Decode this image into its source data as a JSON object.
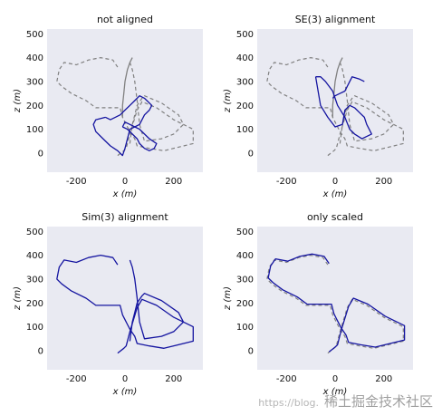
{
  "colors": {
    "panel_bg": "#e9eaf2",
    "estimate": "#1414a0",
    "groundtruth": "#808080"
  },
  "chart_data": [
    {
      "type": "line",
      "title": "not aligned",
      "xlabel": "x (m)",
      "ylabel": "z (m)",
      "xlim": [
        -320,
        320
      ],
      "ylim": [
        -80,
        520
      ],
      "xticks": [
        -200,
        0,
        200
      ],
      "yticks": [
        0,
        100,
        200,
        300,
        400,
        500
      ],
      "grid": false,
      "series": [
        {
          "style": "dashed",
          "color": "#808080",
          "x": [
            -30,
            -5,
            5,
            10,
            20,
            50,
            70,
            130,
            200,
            280,
            280,
            160,
            100,
            50,
            40,
            20,
            10,
            0,
            -10,
            -20,
            -120,
            -160,
            -220,
            -260,
            -280,
            -270,
            -250,
            -200,
            -150,
            -100,
            -50,
            -30
          ],
          "y": [
            -10,
            10,
            20,
            40,
            80,
            180,
            215,
            190,
            140,
            100,
            40,
            10,
            20,
            30,
            60,
            90,
            110,
            130,
            150,
            190,
            190,
            220,
            250,
            280,
            300,
            350,
            380,
            370,
            390,
            400,
            390,
            360
          ]
        },
        {
          "style": "dashed",
          "color": "#808080",
          "x": [
            20,
            25,
            30,
            40,
            50,
            70,
            80,
            150,
            220,
            240,
            200,
            150,
            80,
            60,
            50,
            40,
            30,
            20
          ],
          "y": [
            40,
            80,
            120,
            160,
            200,
            230,
            240,
            210,
            160,
            120,
            80,
            60,
            50,
            120,
            220,
            300,
            350,
            380
          ]
        },
        {
          "style": "solid",
          "color": "#808080",
          "x": [
            -10,
            -10,
            -5,
            0,
            10,
            20,
            30
          ],
          "y": [
            150,
            200,
            250,
            300,
            350,
            380,
            400
          ]
        },
        {
          "style": "solid",
          "color": "#1414a0",
          "x": [
            -80,
            -120,
            -130,
            -120,
            -90,
            -60,
            -30,
            -10,
            0,
            10,
            20,
            40,
            60,
            80,
            100,
            110,
            80,
            60,
            40,
            20,
            0,
            -20,
            -40,
            -60,
            -80
          ],
          "y": [
            150,
            140,
            120,
            90,
            60,
            30,
            10,
            -10,
            20,
            60,
            100,
            110,
            120,
            160,
            180,
            200,
            230,
            240,
            220,
            200,
            180,
            160,
            150,
            140,
            150
          ]
        },
        {
          "style": "solid",
          "color": "#1414a0",
          "x": [
            -10,
            10,
            30,
            50,
            60,
            80,
            100,
            120,
            130,
            100,
            80,
            60,
            40,
            20,
            0,
            -10
          ],
          "y": [
            110,
            100,
            80,
            60,
            40,
            20,
            10,
            20,
            40,
            60,
            80,
            100,
            110,
            120,
            130,
            110
          ]
        }
      ]
    },
    {
      "type": "line",
      "title": "SE(3) alignment",
      "xlabel": "x (m)",
      "ylabel": "z (m)",
      "xlim": [
        -320,
        320
      ],
      "ylim": [
        -80,
        520
      ],
      "xticks": [
        -200,
        0,
        200
      ],
      "yticks": [
        0,
        100,
        200,
        300,
        400,
        500
      ],
      "grid": false,
      "series": [
        {
          "style": "dashed",
          "color": "#808080",
          "x": [
            -30,
            -5,
            5,
            10,
            20,
            50,
            70,
            130,
            200,
            280,
            280,
            160,
            100,
            50,
            40,
            20,
            10,
            0,
            -10,
            -20,
            -120,
            -160,
            -220,
            -260,
            -280,
            -270,
            -250,
            -200,
            -150,
            -100,
            -50,
            -30
          ],
          "y": [
            -10,
            10,
            20,
            40,
            80,
            180,
            215,
            190,
            140,
            100,
            40,
            10,
            20,
            30,
            60,
            90,
            110,
            130,
            150,
            190,
            190,
            220,
            250,
            280,
            300,
            350,
            380,
            370,
            390,
            400,
            390,
            360
          ]
        },
        {
          "style": "dashed",
          "color": "#808080",
          "x": [
            20,
            25,
            30,
            40,
            50,
            70,
            80,
            150,
            220,
            240,
            200,
            150,
            80,
            60,
            50,
            40,
            30,
            20
          ],
          "y": [
            40,
            80,
            120,
            160,
            200,
            230,
            240,
            210,
            160,
            120,
            80,
            60,
            50,
            120,
            220,
            300,
            350,
            380
          ]
        },
        {
          "style": "solid",
          "color": "#808080",
          "x": [
            -10,
            -10,
            -5,
            0,
            10,
            20,
            30
          ],
          "y": [
            150,
            200,
            250,
            300,
            350,
            380,
            400
          ]
        },
        {
          "style": "solid",
          "color": "#1414a0",
          "x": [
            -80,
            -60,
            -30,
            0,
            30,
            40,
            60,
            80,
            100,
            120,
            130,
            140,
            150,
            110,
            80,
            60,
            40,
            10,
            -10,
            -40,
            -60,
            -80
          ],
          "y": [
            320,
            200,
            150,
            110,
            120,
            180,
            200,
            190,
            170,
            150,
            120,
            100,
            80,
            60,
            80,
            100,
            150,
            200,
            260,
            300,
            320,
            320
          ]
        },
        {
          "style": "solid",
          "color": "#1414a0",
          "x": [
            -10,
            0,
            20,
            40,
            60,
            70,
            100,
            120
          ],
          "y": [
            230,
            240,
            250,
            260,
            300,
            320,
            310,
            300
          ]
        }
      ]
    },
    {
      "type": "line",
      "title": "Sim(3) alignment",
      "xlabel": "x (m)",
      "ylabel": "z (m)",
      "xlim": [
        -320,
        320
      ],
      "ylim": [
        -80,
        520
      ],
      "xticks": [
        -200,
        0,
        200
      ],
      "yticks": [
        0,
        100,
        200,
        300,
        400,
        500
      ],
      "grid": false,
      "series": [
        {
          "style": "solid",
          "color": "#1414a0",
          "x": [
            -30,
            -5,
            5,
            10,
            20,
            50,
            70,
            130,
            200,
            280,
            280,
            160,
            100,
            50,
            40,
            20,
            10,
            0,
            -10,
            -20,
            -120,
            -160,
            -220,
            -260,
            -280,
            -270,
            -250,
            -200,
            -150,
            -100,
            -50,
            -30
          ],
          "y": [
            -10,
            10,
            20,
            40,
            80,
            180,
            215,
            190,
            140,
            100,
            40,
            10,
            20,
            30,
            60,
            90,
            110,
            130,
            150,
            190,
            190,
            220,
            250,
            280,
            300,
            350,
            380,
            370,
            390,
            400,
            390,
            360
          ]
        },
        {
          "style": "solid",
          "color": "#1414a0",
          "x": [
            20,
            25,
            30,
            40,
            50,
            70,
            80,
            150,
            220,
            240,
            200,
            150,
            80,
            60,
            50,
            40,
            30,
            20
          ],
          "y": [
            40,
            80,
            120,
            160,
            200,
            230,
            240,
            210,
            160,
            120,
            80,
            60,
            50,
            120,
            220,
            300,
            350,
            380
          ]
        }
      ]
    },
    {
      "type": "line",
      "title": "only scaled",
      "xlabel": "x (m)",
      "ylabel": "z (m)",
      "xlim": [
        -320,
        320
      ],
      "ylim": [
        -80,
        520
      ],
      "xticks": [
        -200,
        0,
        200
      ],
      "yticks": [
        0,
        100,
        200,
        300,
        400,
        500
      ],
      "grid": false,
      "series": [
        {
          "style": "dashed",
          "color": "#808080",
          "x": [
            -30,
            -5,
            5,
            10,
            20,
            50,
            70,
            130,
            200,
            280,
            280,
            160,
            100,
            50,
            40,
            20,
            10,
            0,
            -10,
            -20,
            -120,
            -160,
            -220,
            -260,
            -280,
            -270,
            -250,
            -200,
            -150,
            -100,
            -50,
            -30
          ],
          "y": [
            -10,
            10,
            20,
            40,
            80,
            180,
            215,
            190,
            140,
            100,
            40,
            10,
            20,
            30,
            60,
            90,
            110,
            130,
            150,
            190,
            190,
            220,
            250,
            280,
            300,
            350,
            380,
            370,
            390,
            400,
            390,
            360
          ]
        },
        {
          "style": "solid",
          "color": "#1414a0",
          "x": [
            -25,
            0,
            10,
            15,
            25,
            55,
            75,
            135,
            205,
            285,
            285,
            165,
            105,
            55,
            45,
            25,
            15,
            5,
            -5,
            -15,
            -115,
            -155,
            -215,
            -255,
            -275,
            -265,
            -245,
            -195,
            -145,
            -95,
            -45,
            -25
          ],
          "y": [
            -5,
            15,
            25,
            45,
            85,
            185,
            220,
            195,
            145,
            105,
            45,
            15,
            25,
            35,
            65,
            95,
            115,
            135,
            155,
            195,
            195,
            225,
            255,
            285,
            305,
            355,
            385,
            375,
            395,
            405,
            395,
            365
          ]
        }
      ]
    }
  ],
  "watermark": {
    "left": "https://blog.",
    "right": "稀土掘金技术社区"
  }
}
